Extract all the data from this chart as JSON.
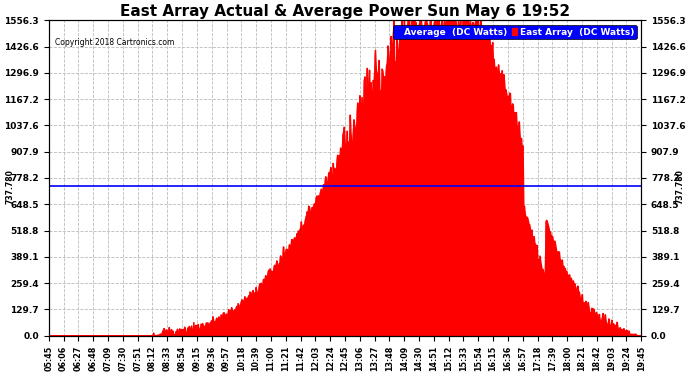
{
  "title": "East Array Actual & Average Power Sun May 6 19:52",
  "copyright": "Copyright 2018 Cartronics.com",
  "legend_avg": "Average  (DC Watts)",
  "legend_east": "East Array  (DC Watts)",
  "avg_value": 737.78,
  "ylim": [
    0,
    1556.3
  ],
  "yticks": [
    0.0,
    129.7,
    259.4,
    389.1,
    518.8,
    648.5,
    778.2,
    907.9,
    1037.6,
    1167.2,
    1296.9,
    1426.6,
    1556.3
  ],
  "background_color": "#ffffff",
  "fill_color": "#ff0000",
  "avg_line_color": "#0000ff",
  "grid_color": "#bbbbbb",
  "title_fontsize": 11,
  "xtick_labels": [
    "05:45",
    "06:06",
    "06:27",
    "06:48",
    "07:09",
    "07:30",
    "07:51",
    "08:12",
    "08:33",
    "08:54",
    "09:15",
    "09:36",
    "09:57",
    "10:18",
    "10:39",
    "11:00",
    "11:21",
    "11:42",
    "12:03",
    "12:24",
    "12:45",
    "13:06",
    "13:27",
    "13:48",
    "14:09",
    "14:30",
    "14:51",
    "15:12",
    "15:33",
    "15:54",
    "16:15",
    "16:36",
    "16:57",
    "17:18",
    "17:39",
    "18:00",
    "18:21",
    "18:42",
    "19:03",
    "19:24",
    "19:45"
  ]
}
